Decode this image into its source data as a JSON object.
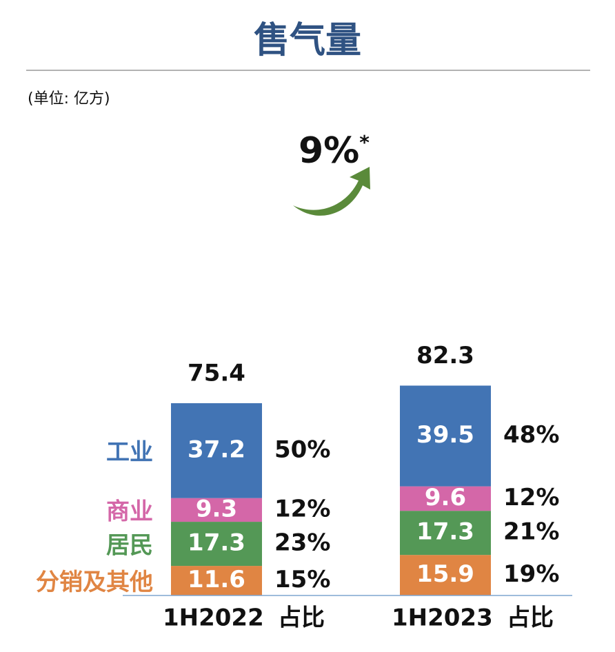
{
  "chart_data": {
    "type": "bar",
    "stacked": true,
    "title": "售气量",
    "unit_label": "(单位: 亿方)",
    "categories": [
      "1H2022",
      "1H2023"
    ],
    "share_header": "占比",
    "totals": [
      "75.4",
      "82.3"
    ],
    "growth": {
      "value": "9%",
      "mark": "*"
    },
    "series": [
      {
        "name": "分销及其他",
        "color": "#E08543",
        "values": [
          11.6,
          15.9
        ],
        "labels": [
          "11.6",
          "15.9"
        ],
        "shares": [
          "15%",
          "19%"
        ]
      },
      {
        "name": "居民",
        "color": "#549856",
        "values": [
          17.3,
          17.3
        ],
        "labels": [
          "17.3",
          "17.3"
        ],
        "shares": [
          "23%",
          "21%"
        ]
      },
      {
        "name": "商业",
        "color": "#D467A8",
        "values": [
          9.3,
          9.6
        ],
        "labels": [
          "9.3",
          "9.6"
        ],
        "shares": [
          "12%",
          "12%"
        ]
      },
      {
        "name": "工业",
        "color": "#4274B4",
        "values": [
          37.2,
          39.5
        ],
        "labels": [
          "37.2",
          "39.5"
        ],
        "shares": [
          "50%",
          "48%"
        ]
      }
    ],
    "colors": {
      "title": "#2F5282",
      "text": "#111111",
      "arrow": "#5A8A3A",
      "rule": "#999999",
      "axis": "#7FA5CF"
    }
  }
}
